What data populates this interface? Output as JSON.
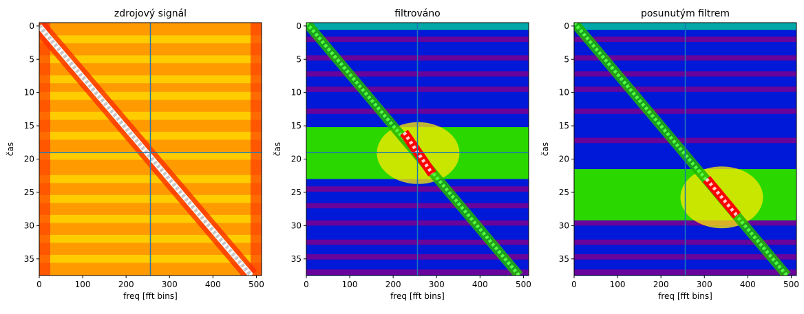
{
  "chart_data": [
    {
      "type": "heatmap",
      "title": "zdrojový signál",
      "xlabel": "freq [fft bins]",
      "ylabel": "čas",
      "xlim": [
        0,
        512
      ],
      "ylim": [
        37.5,
        -0.5
      ],
      "xticks": [
        0,
        100,
        200,
        300,
        400,
        500
      ],
      "yticks": [
        0,
        5,
        10,
        15,
        20,
        25,
        30,
        35
      ],
      "colormap": "hot-yellow-red-white",
      "colors": {
        "background": "#ff9a00",
        "band": "#ffd500",
        "edge": "#ff2a00",
        "ridge": "#c8c8c8"
      },
      "diagonal_ridge": [
        {
          "x": 0,
          "y": 0
        },
        {
          "x": 488,
          "y": 37.5
        }
      ],
      "band_rows": [
        2,
        5,
        8,
        10.5,
        13.5,
        16.5,
        19.5,
        23,
        26,
        29,
        32,
        35
      ],
      "crosshair": {
        "x": 256,
        "y": 19
      },
      "grid": false
    },
    {
      "type": "heatmap",
      "title": "filtrováno",
      "xlabel": "freq [fft bins]",
      "ylabel": "čas",
      "xlim": [
        0,
        512
      ],
      "ylim": [
        37.5,
        -0.5
      ],
      "xticks": [
        0,
        100,
        200,
        300,
        400,
        500
      ],
      "yticks": [
        0,
        5,
        10,
        15,
        20,
        25,
        30,
        35
      ],
      "colormap": "nipy_spectral",
      "colors": {
        "background": "#0018d8",
        "stripe": "#7a0090",
        "pass_band": "#2ad800",
        "peak": "#ffeb00",
        "hot": "#ff0000"
      },
      "pass_band_rows": [
        15.2,
        23
      ],
      "hot_segment": [
        {
          "x": 225,
          "y": 16
        },
        {
          "x": 290,
          "y": 22.2
        }
      ],
      "crosshair": {
        "x": 256,
        "y": 19
      },
      "grid": false
    },
    {
      "type": "heatmap",
      "title": "posunutým filtrem",
      "xlabel": "freq [fft bins]",
      "ylabel": "čas",
      "xlim": [
        0,
        512
      ],
      "ylim": [
        37.5,
        -0.5
      ],
      "xticks": [
        0,
        100,
        200,
        300,
        400,
        500
      ],
      "yticks": [
        0,
        5,
        10,
        15,
        20,
        25,
        30,
        35
      ],
      "colormap": "nipy_spectral",
      "colors": {
        "background": "#0018d8",
        "stripe": "#7a0090",
        "pass_band": "#2ad800",
        "peak": "#ffeb00",
        "hot": "#ff0000"
      },
      "pass_band_rows": [
        21.5,
        29.2
      ],
      "hot_segment": [
        {
          "x": 305,
          "y": 23
        },
        {
          "x": 375,
          "y": 28.5
        }
      ],
      "crosshair": {
        "x": 256,
        "y": null
      },
      "grid": false
    }
  ]
}
